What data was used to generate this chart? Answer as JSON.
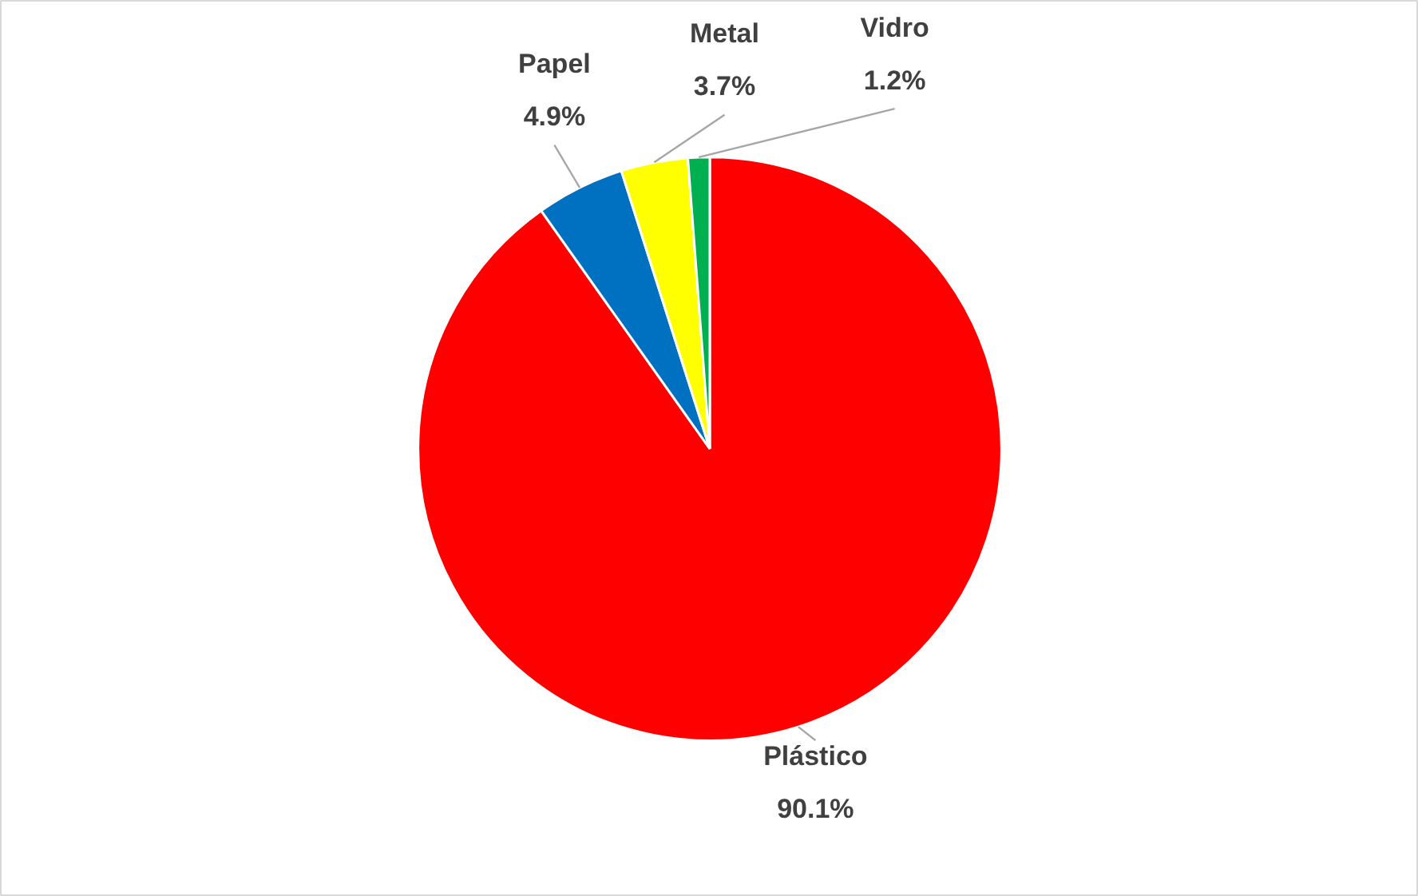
{
  "chart_data": {
    "type": "pie",
    "categories": [
      "Plástico",
      "Papel",
      "Metal",
      "Vidro"
    ],
    "values": [
      90.1,
      4.9,
      3.7,
      1.2
    ],
    "value_labels": [
      "90.1%",
      "4.9%",
      "3.7%",
      "1.2%"
    ],
    "colors": [
      "#ff0000",
      "#0070c0",
      "#ffff00",
      "#00b050"
    ]
  }
}
